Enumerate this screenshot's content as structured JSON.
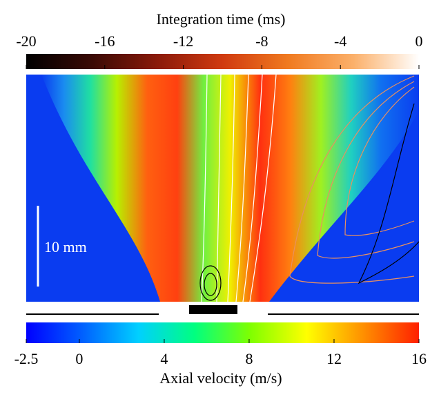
{
  "chart_data": {
    "type": "heatmap",
    "colorbars": [
      {
        "label": "Integration time (ms)",
        "lim": [
          -20,
          0
        ],
        "ticks": [
          -20,
          -16,
          -12,
          -8,
          -4,
          0
        ],
        "colors": [
          "#000000",
          "#3a0a05",
          "#8a1a0a",
          "#d03a10",
          "#f07a20",
          "#fbb06a",
          "#ffffff"
        ]
      },
      {
        "label": "Axial velocity (m/s)",
        "lim": [
          -2.5,
          16
        ],
        "ticks": [
          -2.5,
          0,
          4,
          8,
          12,
          16
        ],
        "colors": [
          "#0000ff",
          "#0060ff",
          "#00d0ff",
          "#00ff80",
          "#80ff00",
          "#ffff00",
          "#ff9000",
          "#ff2000"
        ]
      }
    ],
    "annotations": [
      "10 mm"
    ]
  }
}
